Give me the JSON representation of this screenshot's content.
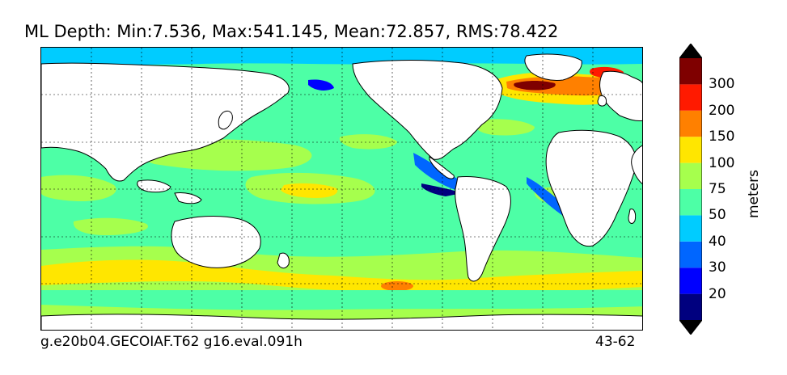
{
  "title": "ML Depth: Min:7.536, Max:541.145, Mean:72.857, RMS:78.422",
  "footer": {
    "left": "g.e20b04.GECOIAF.T62 g16.eval.091h",
    "right": "43-62"
  },
  "colorbar": {
    "units": "meters",
    "levels": [
      "20",
      "30",
      "40",
      "50",
      "75",
      "100",
      "150",
      "200",
      "300"
    ],
    "colors": [
      "#00007f",
      "#0000ff",
      "#0066ff",
      "#00ccff",
      "#4dffa6",
      "#a6ff4d",
      "#ffe600",
      "#ff8000",
      "#ff1a00",
      "#7f0000"
    ],
    "over_color": "#000000",
    "under_color": "#000000"
  },
  "map": {
    "land_color": "#ffffff",
    "gridlines": "dotted"
  }
}
